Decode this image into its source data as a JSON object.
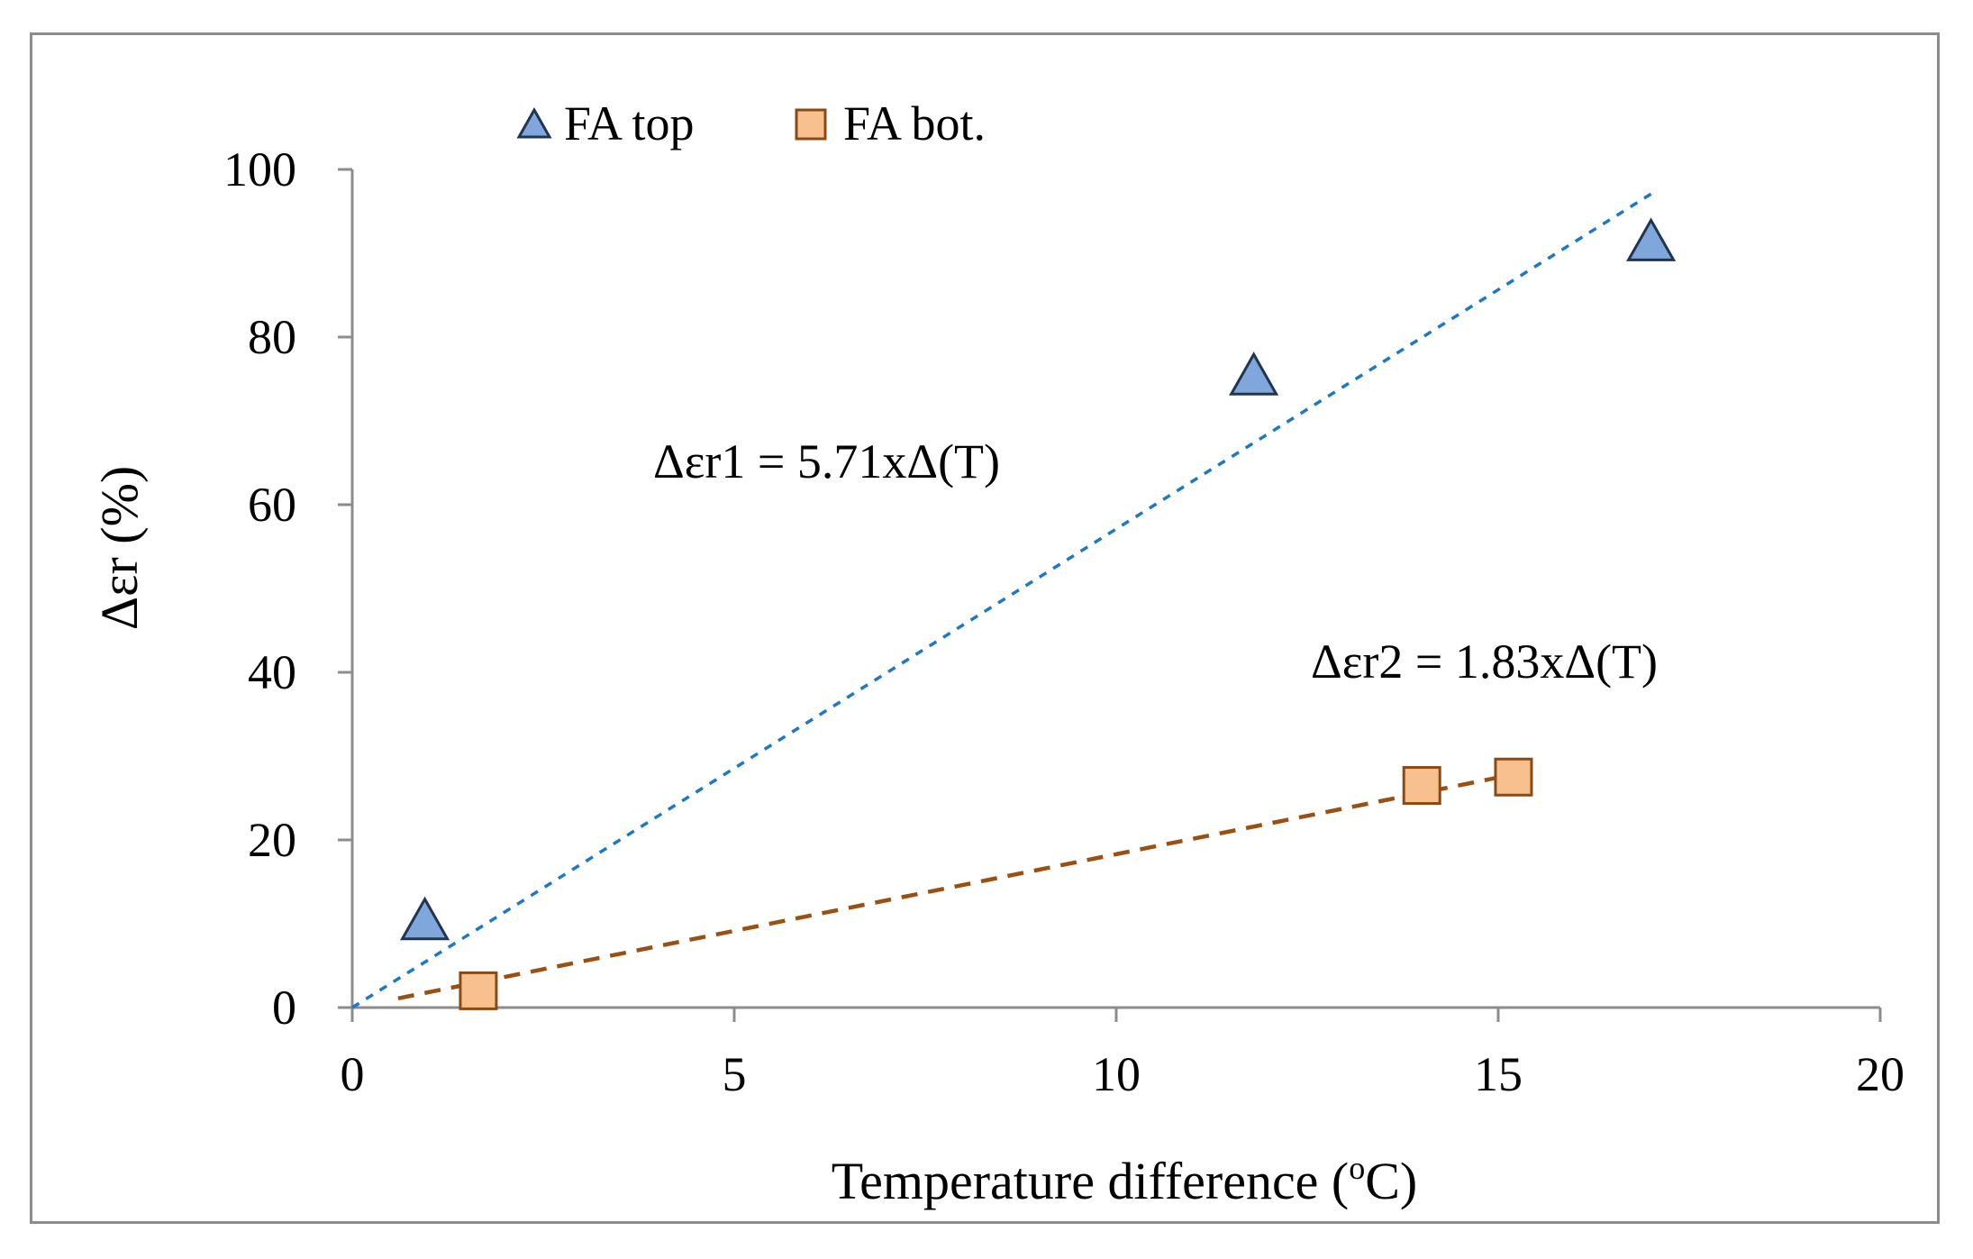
{
  "chart_data": {
    "type": "scatter",
    "xlabel_main": "Temperature  difference (",
    "xlabel_sup": "o",
    "xlabel_tail": "C)",
    "ylabel": "Δεr (%)",
    "xlim": [
      0,
      20
    ],
    "ylim": [
      0,
      100
    ],
    "xticks": [
      0,
      5,
      10,
      15,
      20
    ],
    "yticks": [
      0,
      20,
      40,
      60,
      80,
      100
    ],
    "xtick_labels": [
      "0",
      "5",
      "10",
      "15",
      "20"
    ],
    "ytick_labels": [
      "0",
      "20",
      "40",
      "60",
      "80",
      "100"
    ],
    "series": [
      {
        "name": "FA top",
        "marker": "triangle",
        "fill": "#7fa7db",
        "stroke": "#1f3550",
        "x": [
          0.95,
          11.8,
          17.0
        ],
        "y": [
          10,
          75,
          91
        ],
        "trend": {
          "slope": 5.71,
          "x_range": [
            0,
            17
          ],
          "color": "#1f78c1",
          "style": "dotted"
        },
        "equation": "Δεr1 = 5.71xΔ(T)"
      },
      {
        "name": "FA bot.",
        "marker": "square",
        "fill": "#f9c08f",
        "stroke": "#8b4a13",
        "x": [
          1.65,
          14.0,
          15.2
        ],
        "y": [
          2,
          26.5,
          27.5
        ],
        "trend": {
          "slope": 1.83,
          "x_range": [
            0.6,
            15.2
          ],
          "color": "#9a4f13",
          "style": "dashed"
        },
        "equation": "Δεr2 = 1.83xΔ(T)"
      }
    ],
    "legend": [
      "FA top",
      "FA bot."
    ],
    "axis_color": "#8c8c8c",
    "grid": false
  }
}
